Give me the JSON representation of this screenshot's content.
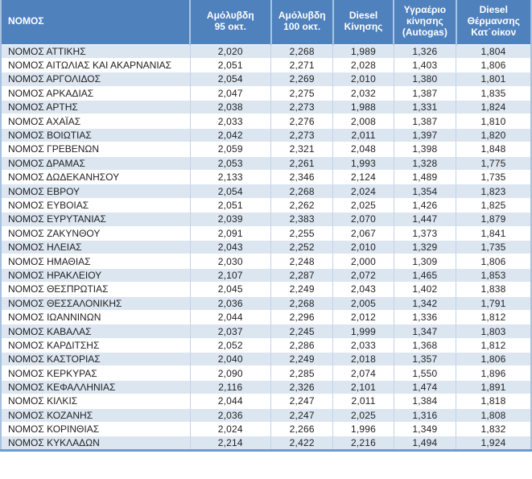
{
  "table": {
    "columns": [
      {
        "id": "nomos",
        "label": "ΝΟΜΟΣ"
      },
      {
        "id": "unleaded_95",
        "label": "Αμόλυβδη\n95 οκτ."
      },
      {
        "id": "unleaded_100",
        "label": "Αμόλυβδη\n100 οκτ."
      },
      {
        "id": "diesel_motion",
        "label": "Diesel\nΚίνησης"
      },
      {
        "id": "autogas",
        "label": "Υγραέριο\nκίνησης\n(Autogas)"
      },
      {
        "id": "diesel_heating",
        "label": "Diesel\nΘέρμανσης\nΚατ΄οίκον"
      }
    ],
    "rows": [
      {
        "name": "ΝΟΜΟΣ ΑΤΤΙΚΗΣ",
        "values": [
          "2,020",
          "2,268",
          "1,989",
          "1,326",
          "1,804"
        ]
      },
      {
        "name": "ΝΟΜΟΣ ΑΙΤΩΛΙΑΣ ΚΑΙ ΑΚΑΡΝΑΝΙΑΣ",
        "values": [
          "2,051",
          "2,271",
          "2,028",
          "1,403",
          "1,806"
        ]
      },
      {
        "name": "ΝΟΜΟΣ ΑΡΓΟΛΙΔΟΣ",
        "values": [
          "2,054",
          "2,269",
          "2,010",
          "1,380",
          "1,801"
        ]
      },
      {
        "name": "ΝΟΜΟΣ ΑΡΚΑΔΙΑΣ",
        "values": [
          "2,047",
          "2,275",
          "2,032",
          "1,387",
          "1,835"
        ]
      },
      {
        "name": "ΝΟΜΟΣ ΑΡΤΗΣ",
        "values": [
          "2,038",
          "2,273",
          "1,988",
          "1,331",
          "1,824"
        ]
      },
      {
        "name": "ΝΟΜΟΣ ΑΧΑΪΑΣ",
        "values": [
          "2,033",
          "2,276",
          "2,008",
          "1,387",
          "1,810"
        ]
      },
      {
        "name": "ΝΟΜΟΣ ΒΟΙΩΤΙΑΣ",
        "values": [
          "2,042",
          "2,273",
          "2,011",
          "1,397",
          "1,820"
        ]
      },
      {
        "name": "ΝΟΜΟΣ ΓΡΕΒΕΝΩΝ",
        "values": [
          "2,059",
          "2,321",
          "2,048",
          "1,398",
          "1,848"
        ]
      },
      {
        "name": "ΝΟΜΟΣ ΔΡΑΜΑΣ",
        "values": [
          "2,053",
          "2,261",
          "1,993",
          "1,328",
          "1,775"
        ]
      },
      {
        "name": "ΝΟΜΟΣ ΔΩΔΕΚΑΝΗΣΟΥ",
        "values": [
          "2,133",
          "2,346",
          "2,124",
          "1,489",
          "1,735"
        ]
      },
      {
        "name": "ΝΟΜΟΣ ΕΒΡΟΥ",
        "values": [
          "2,054",
          "2,268",
          "2,024",
          "1,354",
          "1,823"
        ]
      },
      {
        "name": "ΝΟΜΟΣ ΕΥΒΟΙΑΣ",
        "values": [
          "2,051",
          "2,262",
          "2,025",
          "1,426",
          "1,825"
        ]
      },
      {
        "name": "ΝΟΜΟΣ ΕΥΡΥΤΑΝΙΑΣ",
        "values": [
          "2,039",
          "2,383",
          "2,070",
          "1,447",
          "1,879"
        ]
      },
      {
        "name": "ΝΟΜΟΣ ΖΑΚΥΝΘΟΥ",
        "values": [
          "2,091",
          "2,255",
          "2,067",
          "1,373",
          "1,841"
        ]
      },
      {
        "name": "ΝΟΜΟΣ ΗΛΕΙΑΣ",
        "values": [
          "2,043",
          "2,252",
          "2,010",
          "1,329",
          "1,735"
        ]
      },
      {
        "name": "ΝΟΜΟΣ ΗΜΑΘΙΑΣ",
        "values": [
          "2,030",
          "2,248",
          "2,000",
          "1,309",
          "1,806"
        ]
      },
      {
        "name": "ΝΟΜΟΣ ΗΡΑΚΛΕΙΟΥ",
        "values": [
          "2,107",
          "2,287",
          "2,072",
          "1,465",
          "1,853"
        ]
      },
      {
        "name": "ΝΟΜΟΣ ΘΕΣΠΡΩΤΙΑΣ",
        "values": [
          "2,045",
          "2,249",
          "2,043",
          "1,402",
          "1,838"
        ]
      },
      {
        "name": "ΝΟΜΟΣ ΘΕΣΣΑΛΟΝΙΚΗΣ",
        "values": [
          "2,036",
          "2,268",
          "2,005",
          "1,342",
          "1,791"
        ]
      },
      {
        "name": "ΝΟΜΟΣ ΙΩΑΝΝΙΝΩΝ",
        "values": [
          "2,044",
          "2,296",
          "2,012",
          "1,336",
          "1,812"
        ]
      },
      {
        "name": "ΝΟΜΟΣ ΚΑΒΑΛΑΣ",
        "values": [
          "2,037",
          "2,245",
          "1,999",
          "1,347",
          "1,803"
        ]
      },
      {
        "name": "ΝΟΜΟΣ ΚΑΡΔΙΤΣΗΣ",
        "values": [
          "2,052",
          "2,286",
          "2,033",
          "1,368",
          "1,812"
        ]
      },
      {
        "name": "ΝΟΜΟΣ ΚΑΣΤΟΡΙΑΣ",
        "values": [
          "2,040",
          "2,249",
          "2,018",
          "1,357",
          "1,806"
        ]
      },
      {
        "name": "ΝΟΜΟΣ ΚΕΡΚΥΡΑΣ",
        "values": [
          "2,090",
          "2,285",
          "2,074",
          "1,550",
          "1,896"
        ]
      },
      {
        "name": "ΝΟΜΟΣ ΚΕΦΑΛΛΗΝΙΑΣ",
        "values": [
          "2,116",
          "2,326",
          "2,101",
          "1,474",
          "1,891"
        ]
      },
      {
        "name": "ΝΟΜΟΣ ΚΙΛΚΙΣ",
        "values": [
          "2,044",
          "2,247",
          "2,011",
          "1,384",
          "1,818"
        ]
      },
      {
        "name": "ΝΟΜΟΣ ΚΟΖΑΝΗΣ",
        "values": [
          "2,036",
          "2,247",
          "2,025",
          "1,316",
          "1,808"
        ]
      },
      {
        "name": "ΝΟΜΟΣ ΚΟΡΙΝΘΙΑΣ",
        "values": [
          "2,024",
          "2,266",
          "1,996",
          "1,349",
          "1,832"
        ]
      },
      {
        "name": "ΝΟΜΟΣ ΚΥΚΛΑΔΩΝ",
        "values": [
          "2,214",
          "2,422",
          "2,216",
          "1,494",
          "1,924"
        ]
      }
    ]
  },
  "colors": {
    "header_bg": "#4F81BD",
    "header_text": "#FFFFFF",
    "band_row_bg": "#DCE6F1",
    "plain_row_bg": "#FFFFFF",
    "grid_line": "#C3D3E7",
    "header_grid_line": "#A8C6E5",
    "outer_border": "#A7C1DE",
    "bottom_border": "#6C9BD0",
    "body_text": "#1F1F1F"
  }
}
